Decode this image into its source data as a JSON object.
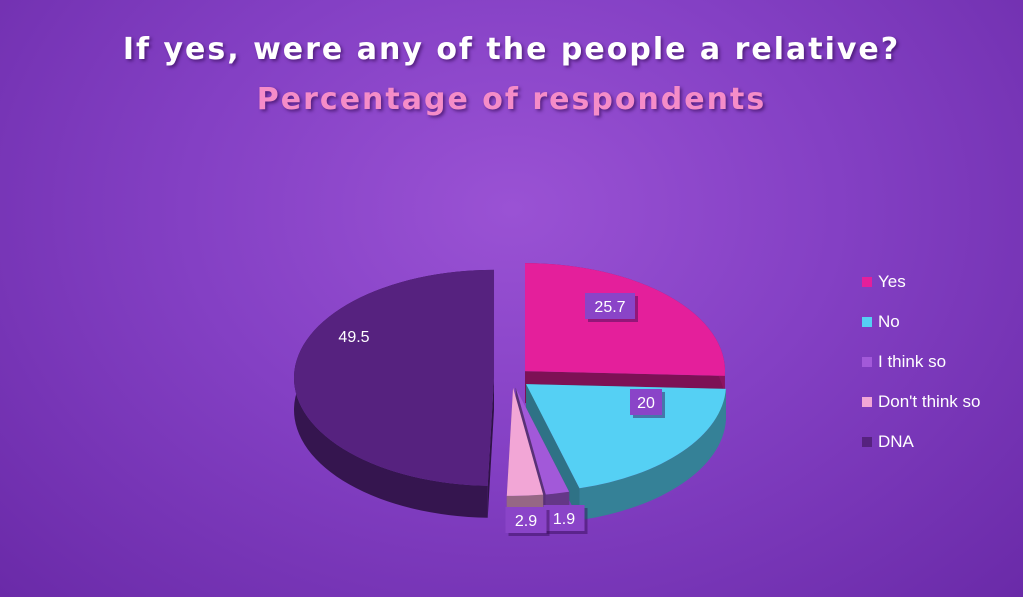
{
  "chart_data": {
    "type": "pie",
    "title": "If yes, were any of the people a relative?",
    "subtitle": "Percentage of respondents",
    "categories": [
      "Yes",
      "No",
      "I think so",
      "Don't think so",
      "DNA"
    ],
    "values": [
      25.7,
      20,
      1.9,
      2.9,
      49.5
    ],
    "value_labels": [
      "25.7",
      "20",
      "1.9",
      "2.9",
      "49.5"
    ],
    "colors": [
      "#e41f9b",
      "#55d0f4",
      "#a259d9",
      "#f2a6d6",
      "#56227f"
    ],
    "legend_position": "right",
    "exploded": true,
    "style": "3d"
  }
}
